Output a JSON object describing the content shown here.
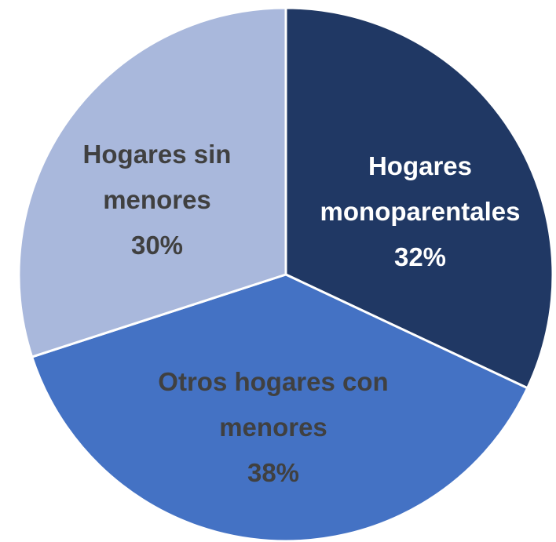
{
  "chart_data": {
    "type": "pie",
    "categories": [
      "Hogares monoparentales",
      "Otros hogares con menores",
      "Hogares sin menores"
    ],
    "values": [
      32,
      38,
      30
    ],
    "value_labels": [
      "32%",
      "38%",
      "30%"
    ],
    "colors": [
      "#203864",
      "#4472c4",
      "#a9b8dc"
    ],
    "label_colors": [
      "#ffffff",
      "#404040",
      "#404040"
    ]
  }
}
